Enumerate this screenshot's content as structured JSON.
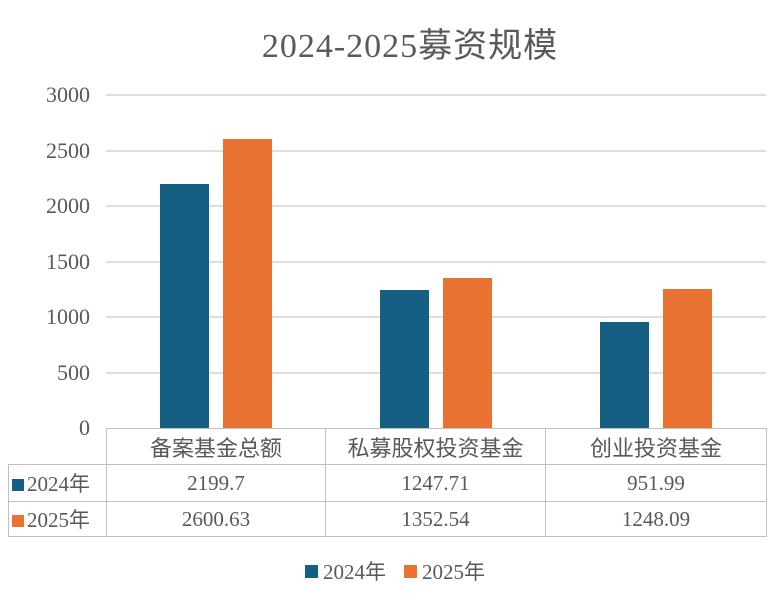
{
  "title": "2024-2025募资规模",
  "colors": {
    "series_2024": "#156082",
    "series_2025": "#E97132",
    "gridline": "#DEDEDE",
    "table_border": "#BFBFBF",
    "text": "#595959"
  },
  "chart_data": {
    "type": "bar",
    "title": "2024-2025募资规模",
    "categories": [
      "备案基金总额",
      "私募股权投资基金",
      "创业投资基金"
    ],
    "series": [
      {
        "name": "2024年",
        "color": "#156082",
        "values": [
          2199.7,
          1247.71,
          951.99
        ]
      },
      {
        "name": "2025年",
        "color": "#E97132",
        "values": [
          2600.63,
          1352.54,
          1248.09
        ]
      }
    ],
    "ylim": [
      0,
      3000
    ],
    "yticks": [
      0,
      500,
      1000,
      1500,
      2000,
      2500,
      3000
    ],
    "grid": true,
    "legend_position": "bottom",
    "data_table_shown": true
  }
}
